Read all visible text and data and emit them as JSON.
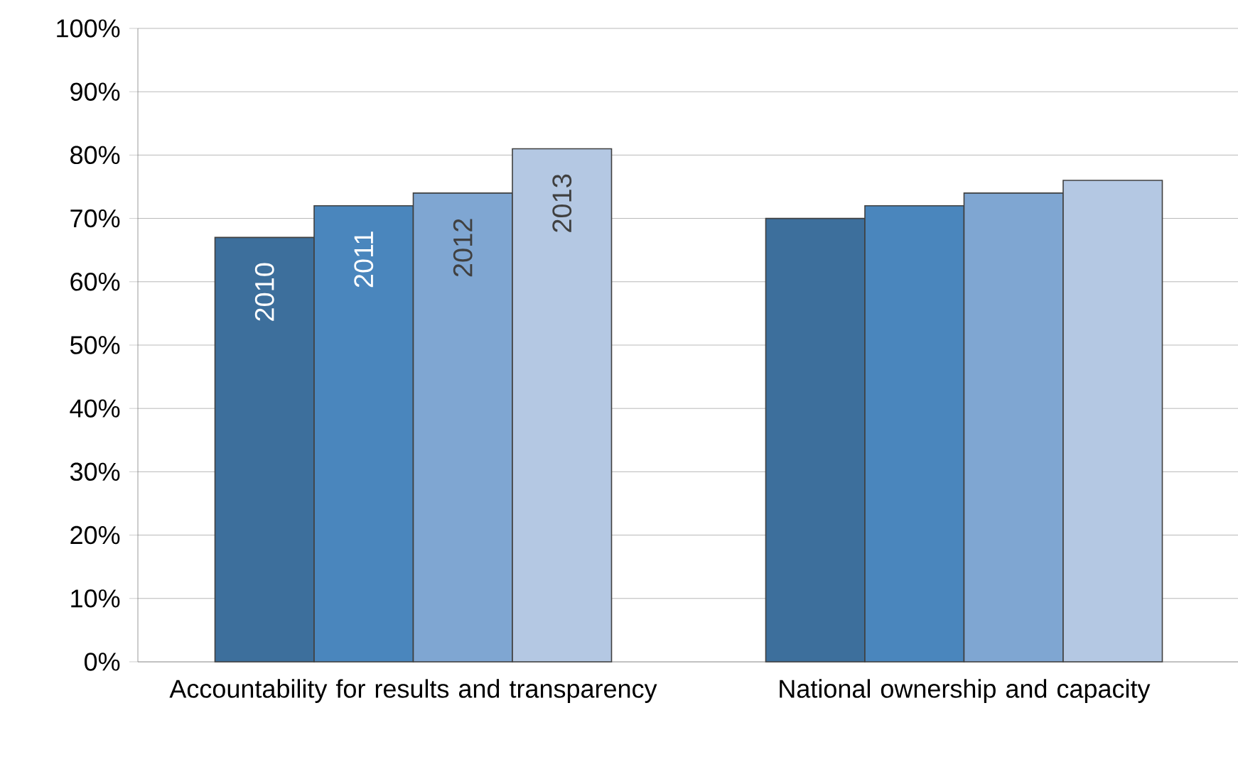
{
  "chart_data": {
    "type": "bar",
    "categories": [
      "Accountability for results and transparency",
      "National ownership and capacity"
    ],
    "series": [
      {
        "name": "2010",
        "color": "#3d6f9c",
        "values": [
          67,
          70
        ]
      },
      {
        "name": "2011",
        "color": "#4a86bd",
        "values": [
          72,
          72
        ]
      },
      {
        "name": "2012",
        "color": "#7fa6d2",
        "values": [
          74,
          74
        ]
      },
      {
        "name": "2013",
        "color": "#b4c8e3",
        "values": [
          81,
          76
        ]
      }
    ],
    "ylim": [
      0,
      100
    ],
    "yticks": [
      {
        "value": 0,
        "label": "0%"
      },
      {
        "value": 10,
        "label": "10%"
      },
      {
        "value": 20,
        "label": "20%"
      },
      {
        "value": 30,
        "label": "30%"
      },
      {
        "value": 40,
        "label": "40%"
      },
      {
        "value": 50,
        "label": "50%"
      },
      {
        "value": 60,
        "label": "60%"
      },
      {
        "value": 70,
        "label": "70%"
      },
      {
        "value": 80,
        "label": "80%"
      },
      {
        "value": 90,
        "label": "90%"
      },
      {
        "value": 100,
        "label": "100%"
      }
    ],
    "grid": "y",
    "legend": false
  }
}
